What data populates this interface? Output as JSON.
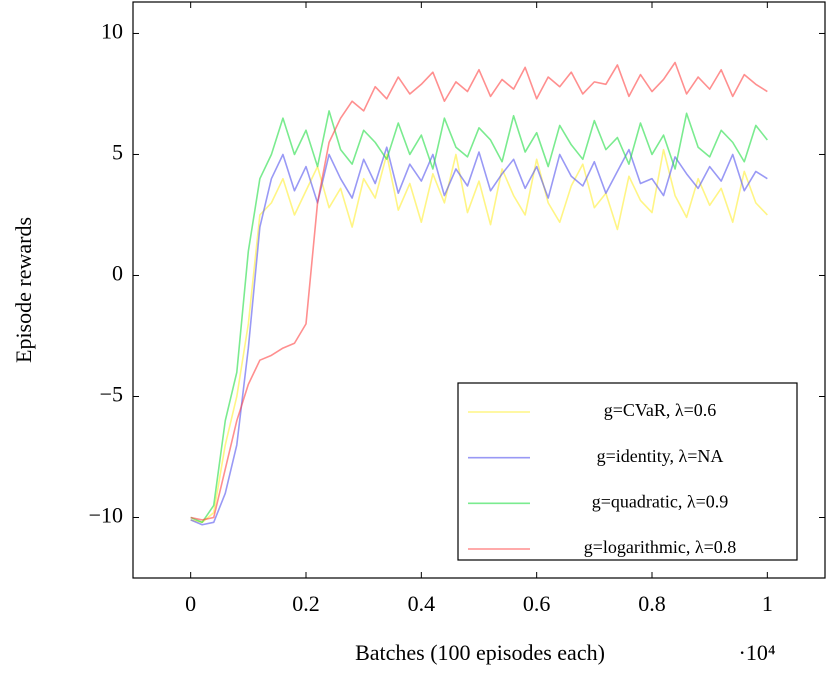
{
  "chart_data": {
    "type": "line",
    "xlabel": "Batches (100 episodes each)",
    "ylabel": "Episode rewards",
    "x_multiplier": "·10⁴",
    "x": [
      0,
      200,
      400,
      600,
      800,
      1000,
      1200,
      1400,
      1600,
      1800,
      2000,
      2200,
      2400,
      2600,
      2800,
      3000,
      3200,
      3400,
      3600,
      3800,
      4000,
      4200,
      4400,
      4600,
      4800,
      5000,
      5200,
      5400,
      5600,
      5800,
      6000,
      6200,
      6400,
      6600,
      6800,
      7000,
      7200,
      7400,
      7600,
      7800,
      8000,
      8200,
      8400,
      8600,
      8800,
      9000,
      9200,
      9400,
      9600,
      9800,
      10000
    ],
    "series": [
      {
        "name": "g=CVaR, λ=0.6",
        "color": "#ffee33",
        "values": [
          -10.1,
          -10.2,
          -9.8,
          -7,
          -5,
          -2,
          2.5,
          3,
          4,
          2.5,
          3.5,
          4.5,
          2.8,
          3.6,
          2,
          4,
          3.2,
          5,
          2.7,
          3.8,
          2.2,
          4.2,
          3,
          5,
          2.6,
          3.9,
          2.1,
          4.4,
          3.3,
          2.5,
          4.8,
          3,
          2.2,
          3.7,
          4.6,
          2.8,
          3.4,
          1.9,
          4.1,
          3.1,
          2.6,
          5.2,
          3.3,
          2.4,
          4,
          2.9,
          3.6,
          2.2,
          4.3,
          3,
          2.5
        ]
      },
      {
        "name": "g=identity, λ=NA",
        "color": "#5555ee",
        "values": [
          -10.1,
          -10.3,
          -10.2,
          -9,
          -7,
          -3,
          2,
          4,
          5,
          3.5,
          4.5,
          3,
          5,
          4,
          3.2,
          4.8,
          3.8,
          5.3,
          3.4,
          4.6,
          3.9,
          5,
          3.3,
          4.4,
          3.7,
          5.1,
          3.5,
          4.2,
          4.8,
          3.6,
          4.5,
          3.2,
          5,
          4.1,
          3.7,
          4.7,
          3.4,
          4.3,
          5.2,
          3.8,
          4,
          3.3,
          4.9,
          4.2,
          3.6,
          4.5,
          3.9,
          5,
          3.5,
          4.3,
          4
        ]
      },
      {
        "name": "g=quadratic, λ=0.9",
        "color": "#22dd44",
        "values": [
          -10,
          -10.2,
          -9.5,
          -6,
          -4,
          1,
          4,
          5,
          6.5,
          5,
          6,
          4.5,
          6.8,
          5.2,
          4.6,
          6,
          5.5,
          4.8,
          6.3,
          5,
          5.8,
          4.4,
          6.5,
          5.3,
          4.9,
          6.1,
          5.6,
          4.7,
          6.6,
          5.1,
          5.9,
          4.5,
          6.2,
          5.4,
          4.8,
          6.4,
          5.2,
          5.7,
          4.6,
          6.3,
          5,
          5.8,
          4.4,
          6.7,
          5.3,
          4.9,
          6,
          5.5,
          4.7,
          6.2,
          5.6
        ]
      },
      {
        "name": "g=logarithmic, λ=0.8",
        "color": "#ff4444",
        "values": [
          -10,
          -10.1,
          -10,
          -8,
          -6,
          -4.5,
          -3.5,
          -3.3,
          -3,
          -2.8,
          -2,
          3,
          5.5,
          6.5,
          7.2,
          6.8,
          7.8,
          7.3,
          8.2,
          7.5,
          7.9,
          8.4,
          7.2,
          8,
          7.6,
          8.5,
          7.4,
          8.1,
          7.7,
          8.6,
          7.3,
          8.2,
          7.8,
          8.4,
          7.5,
          8,
          7.9,
          8.7,
          7.4,
          8.3,
          7.6,
          8.1,
          8.8,
          7.5,
          8.2,
          7.7,
          8.5,
          7.4,
          8.3,
          7.9,
          7.6
        ]
      }
    ],
    "xlim": [
      -1000,
      11000
    ],
    "ylim": [
      -12.5,
      11.3
    ],
    "xticks": [
      0,
      {
        "value": 2000,
        "label": "0.2"
      },
      {
        "value": 4000,
        "label": "0.4"
      },
      {
        "value": 6000,
        "label": "0.6"
      },
      {
        "value": 8000,
        "label": "0.8"
      },
      {
        "value": 10000,
        "label": "1"
      }
    ],
    "yticks": [
      {
        "value": -10,
        "label": "−10"
      },
      {
        "value": -5,
        "label": "−5"
      },
      0,
      5,
      10
    ],
    "grid": false,
    "legend": "lower right"
  }
}
